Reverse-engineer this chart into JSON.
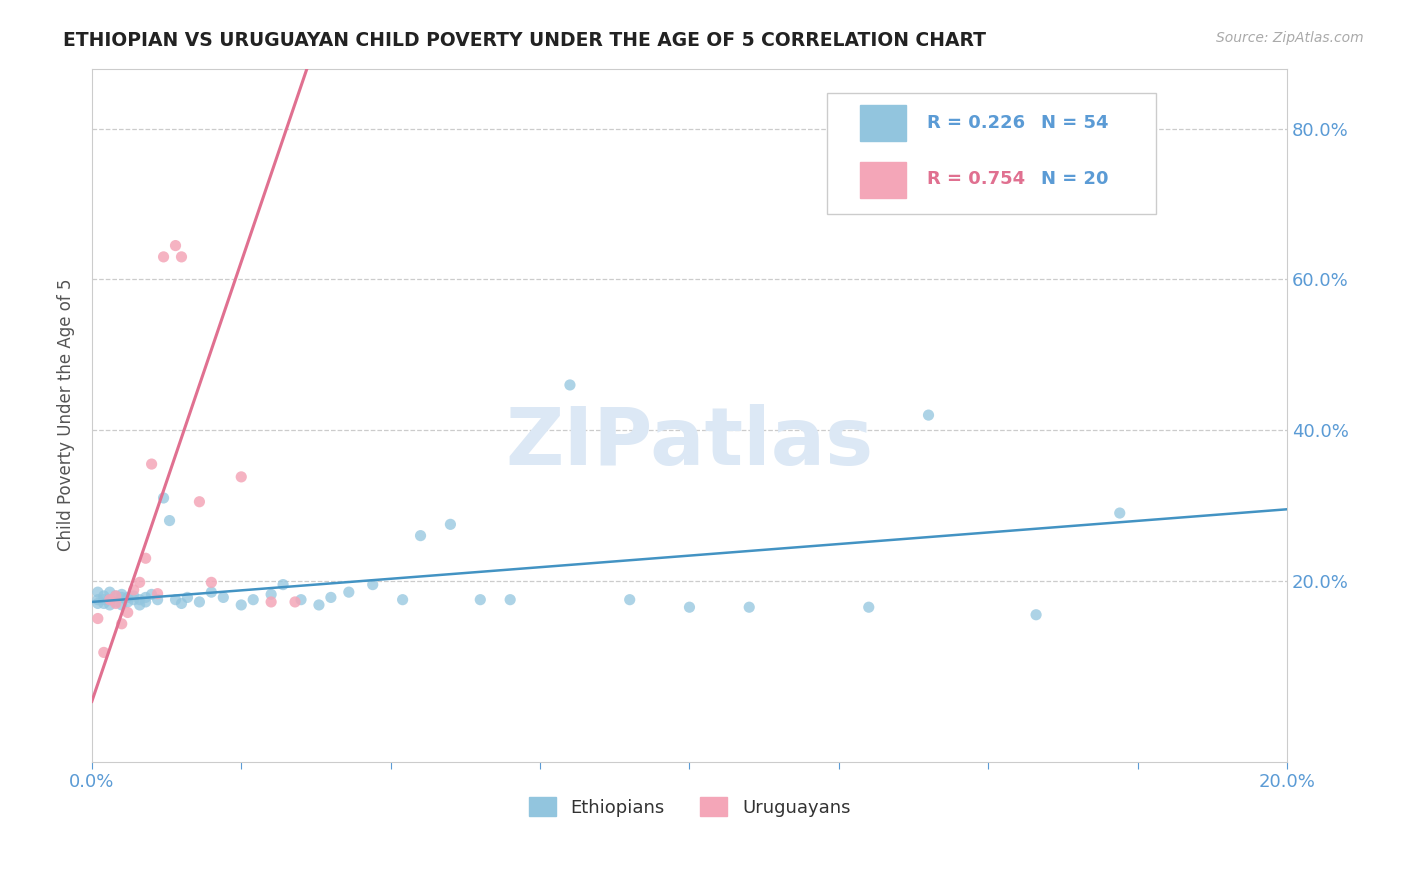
{
  "title": "ETHIOPIAN VS URUGUAYAN CHILD POVERTY UNDER THE AGE OF 5 CORRELATION CHART",
  "source_text": "Source: ZipAtlas.com",
  "ylabel": "Child Poverty Under the Age of 5",
  "xlim": [
    0.0,
    0.2
  ],
  "ylim": [
    -0.04,
    0.88
  ],
  "ytick_positions": [
    0.2,
    0.4,
    0.6,
    0.8
  ],
  "ytick_labels": [
    "20.0%",
    "40.0%",
    "60.0%",
    "80.0%"
  ],
  "blue_color": "#92c5de",
  "pink_color": "#f4a6b8",
  "blue_line_color": "#4393c3",
  "pink_line_color": "#e07090",
  "watermark_text": "ZIPatlas",
  "legend_r_blue": "R = 0.226",
  "legend_n_blue": "N = 54",
  "legend_r_pink": "R = 0.754",
  "legend_n_pink": "N = 20",
  "legend1_label": "Ethiopians",
  "legend2_label": "Uruguayans",
  "ethiopians_x": [
    0.001,
    0.001,
    0.001,
    0.002,
    0.002,
    0.002,
    0.003,
    0.003,
    0.003,
    0.004,
    0.004,
    0.005,
    0.005,
    0.005,
    0.006,
    0.006,
    0.007,
    0.007,
    0.008,
    0.008,
    0.009,
    0.009,
    0.01,
    0.011,
    0.012,
    0.013,
    0.014,
    0.015,
    0.016,
    0.018,
    0.02,
    0.022,
    0.025,
    0.027,
    0.03,
    0.032,
    0.035,
    0.038,
    0.04,
    0.043,
    0.047,
    0.052,
    0.055,
    0.06,
    0.065,
    0.07,
    0.08,
    0.09,
    0.1,
    0.11,
    0.13,
    0.14,
    0.158,
    0.172
  ],
  "ethiopians_y": [
    0.185,
    0.175,
    0.17,
    0.18,
    0.175,
    0.17,
    0.185,
    0.175,
    0.168,
    0.18,
    0.172,
    0.178,
    0.168,
    0.182,
    0.178,
    0.172,
    0.18,
    0.175,
    0.175,
    0.168,
    0.178,
    0.172,
    0.182,
    0.175,
    0.31,
    0.28,
    0.175,
    0.17,
    0.178,
    0.172,
    0.185,
    0.178,
    0.168,
    0.175,
    0.182,
    0.195,
    0.175,
    0.168,
    0.178,
    0.185,
    0.195,
    0.175,
    0.26,
    0.275,
    0.175,
    0.175,
    0.46,
    0.175,
    0.165,
    0.165,
    0.165,
    0.42,
    0.155,
    0.29
  ],
  "uruguayans_x": [
    0.001,
    0.002,
    0.003,
    0.004,
    0.004,
    0.005,
    0.006,
    0.007,
    0.008,
    0.009,
    0.01,
    0.011,
    0.012,
    0.014,
    0.015,
    0.018,
    0.02,
    0.025,
    0.03,
    0.034
  ],
  "uruguayans_y": [
    0.15,
    0.105,
    0.175,
    0.18,
    0.17,
    0.143,
    0.158,
    0.188,
    0.198,
    0.23,
    0.355,
    0.183,
    0.63,
    0.645,
    0.63,
    0.305,
    0.198,
    0.338,
    0.172,
    0.172
  ],
  "blue_trendline_x": [
    0.0,
    0.2
  ],
  "blue_trendline_y": [
    0.172,
    0.295
  ],
  "pink_trendline_x": [
    0.0,
    0.036
  ],
  "pink_trendline_y": [
    0.04,
    0.88
  ],
  "background_color": "#ffffff",
  "grid_color": "#cccccc",
  "title_color": "#222222",
  "axis_color": "#5b9bd5",
  "watermark_color": "#dce8f5"
}
